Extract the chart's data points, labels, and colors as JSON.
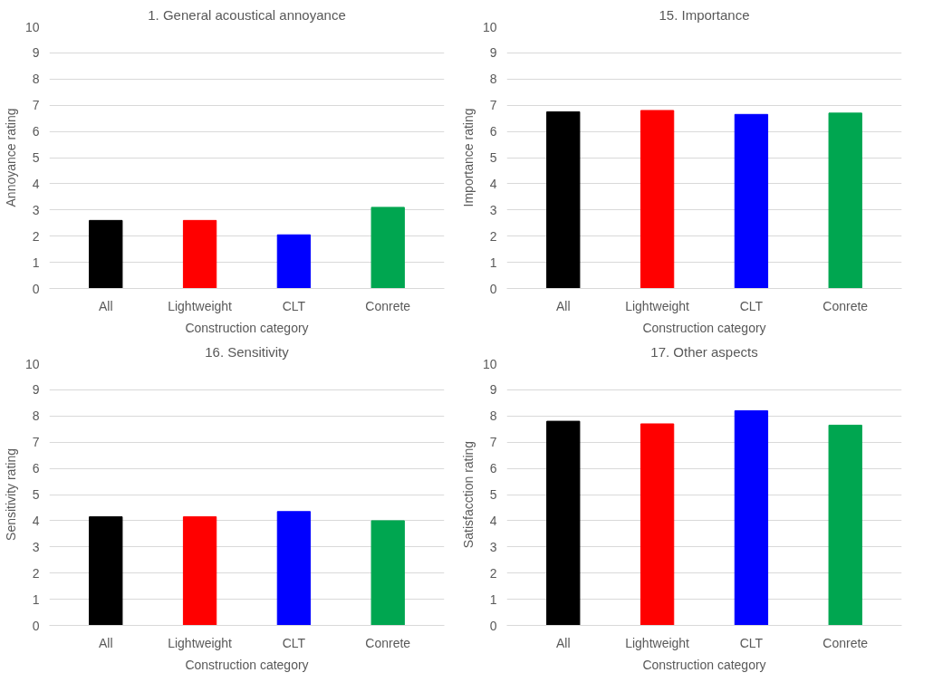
{
  "chart_data": [
    {
      "type": "bar",
      "title": "1. General acoustical annoyance",
      "xlabel": "Construction category",
      "ylabel": "Annoyance rating",
      "categories": [
        "All",
        "Lightweight",
        "CLT",
        "Conrete"
      ],
      "values": [
        2.6,
        2.6,
        2.05,
        3.1
      ],
      "colors": [
        "#000000",
        "#ff0000",
        "#0000ff",
        "#00a650"
      ],
      "ylim": [
        0,
        10
      ],
      "yticks": [
        0,
        1,
        2,
        3,
        4,
        5,
        6,
        7,
        8,
        9,
        10
      ],
      "grid": "y"
    },
    {
      "type": "bar",
      "title": "15. Importance",
      "xlabel": "Construction category",
      "ylabel": "Importance rating",
      "categories": [
        "All",
        "Lightweight",
        "CLT",
        "Conrete"
      ],
      "values": [
        6.75,
        6.8,
        6.65,
        6.7
      ],
      "colors": [
        "#000000",
        "#ff0000",
        "#0000ff",
        "#00a650"
      ],
      "ylim": [
        0,
        10
      ],
      "yticks": [
        0,
        1,
        2,
        3,
        4,
        5,
        6,
        7,
        8,
        9,
        10
      ],
      "grid": "y"
    },
    {
      "type": "bar",
      "title": "16. Sensitivity",
      "xlabel": "Construction category",
      "ylabel": "Sensitivity rating",
      "categories": [
        "All",
        "Lightweight",
        "CLT",
        "Conrete"
      ],
      "values": [
        4.15,
        4.15,
        4.35,
        4.0
      ],
      "colors": [
        "#000000",
        "#ff0000",
        "#0000ff",
        "#00a650"
      ],
      "ylim": [
        0,
        10
      ],
      "yticks": [
        0,
        1,
        2,
        3,
        4,
        5,
        6,
        7,
        8,
        9,
        10
      ],
      "grid": "y"
    },
    {
      "type": "bar",
      "title": "17. Other aspects",
      "xlabel": "Construction category",
      "ylabel": "Satisfacction rating",
      "categories": [
        "All",
        "Lightweight",
        "CLT",
        "Conrete"
      ],
      "values": [
        7.8,
        7.7,
        8.2,
        7.65
      ],
      "colors": [
        "#000000",
        "#ff0000",
        "#0000ff",
        "#00a650"
      ],
      "ylim": [
        0,
        10
      ],
      "yticks": [
        0,
        1,
        2,
        3,
        4,
        5,
        6,
        7,
        8,
        9,
        10
      ],
      "grid": "y"
    }
  ]
}
